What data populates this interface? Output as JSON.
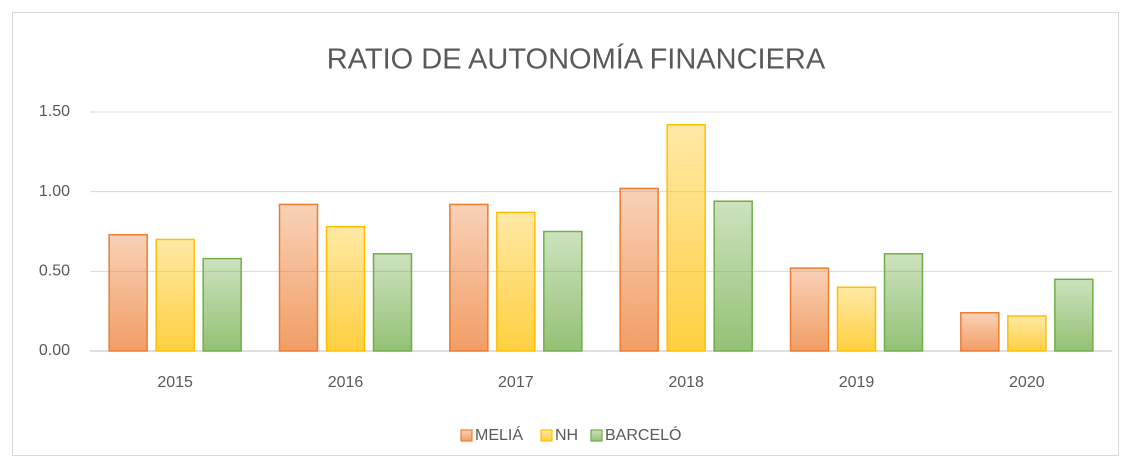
{
  "chart_data": {
    "type": "bar",
    "title": "RATIO DE AUTONOMÍA FINANCIERA",
    "categories": [
      "2015",
      "2016",
      "2017",
      "2018",
      "2019",
      "2020"
    ],
    "series": [
      {
        "name": "MELIÁ",
        "color": "#ed7d31",
        "values": [
          0.73,
          0.92,
          0.92,
          1.02,
          0.52,
          0.24
        ]
      },
      {
        "name": "NH",
        "color": "#ffc000",
        "values": [
          0.7,
          0.78,
          0.87,
          1.42,
          0.4,
          0.22
        ]
      },
      {
        "name": "BARCELÓ",
        "color": "#70ad47",
        "values": [
          0.58,
          0.61,
          0.75,
          0.94,
          0.61,
          0.45
        ]
      }
    ],
    "ylim": [
      0,
      1.5
    ],
    "yticks": [
      {
        "value": 0,
        "label": "0.00"
      },
      {
        "value": 0.5,
        "label": "0.50"
      },
      {
        "value": 1,
        "label": "1.00"
      },
      {
        "value": 1.5,
        "label": "1.50"
      }
    ],
    "grid": true,
    "legend": "bottom"
  }
}
